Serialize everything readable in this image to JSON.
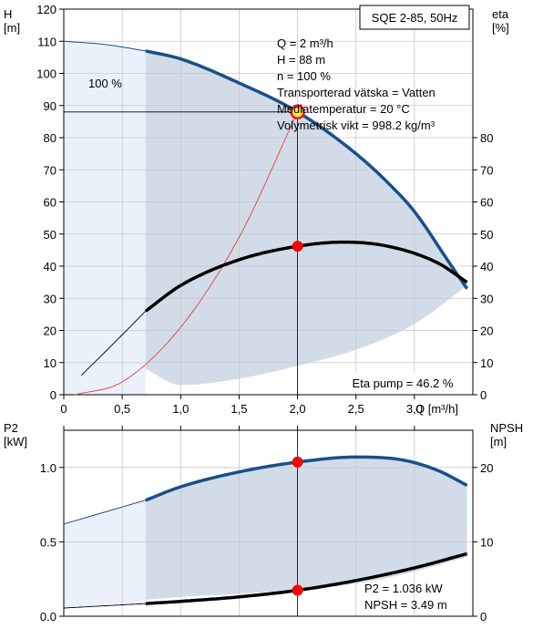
{
  "colors": {
    "curve_blue": "#1a4f8a",
    "curve_black": "#000000",
    "npsh_red": "#e04040",
    "region_dark": "#d2dce8",
    "region_light": "#eaf1fa",
    "grid": "#c8c8c8",
    "marker": "#ff0000",
    "duty_fill": "#ffee33"
  },
  "chart_data": [
    {
      "type": "line",
      "panel": "top",
      "title_box": "SQE 2-85, 50Hz",
      "xlabel": "Q [m³/h]",
      "ylabel_left": "H\n[m]",
      "ylabel_right": "eta\n[%]",
      "xlim": [
        0,
        3.5
      ],
      "ylim_left": [
        0,
        120
      ],
      "ylim_right": [
        0,
        120
      ],
      "x_ticks": [
        "0",
        "0,5",
        "1,0",
        "1,5",
        "2,0",
        "2,5",
        "3,0"
      ],
      "x_tick_values": [
        0,
        0.5,
        1.0,
        1.5,
        2.0,
        2.5,
        3.0
      ],
      "y_left_ticks": [
        0,
        10,
        20,
        30,
        40,
        50,
        60,
        70,
        80,
        90,
        100,
        110,
        120
      ],
      "y_right_ticks": [
        0,
        10,
        20,
        30,
        40,
        50,
        60,
        70,
        80
      ],
      "grid": true,
      "speed_label": "100 %",
      "info_lines": [
        "Q = 2 m³/h",
        "H = 88 m",
        "n = 100 %",
        "Transporterad vätska = Vatten",
        "Mediatemperatur = 20 °C",
        "Volymetrisk vikt = 998.2 kg/m³"
      ],
      "eta_label": "Eta pump = 46.2 %",
      "duty_point": {
        "q": 2.0,
        "h": 88,
        "eta": 46.2
      },
      "series": [
        {
          "role": "head_extended",
          "x": [
            0,
            0.35,
            0.7
          ],
          "values": [
            110,
            109,
            107
          ]
        },
        {
          "role": "head",
          "x": [
            0.7,
            1.0,
            1.5,
            2.0,
            2.5,
            2.8,
            3.0,
            3.3,
            3.45
          ],
          "values": [
            107,
            104.5,
            97,
            88,
            75,
            65,
            57,
            41,
            33
          ]
        },
        {
          "role": "eta_extended",
          "x": [
            0.15,
            0.4,
            0.7
          ],
          "values": [
            6,
            15,
            26
          ]
        },
        {
          "role": "eta",
          "x": [
            0.7,
            1.0,
            1.5,
            2.0,
            2.4,
            2.8,
            3.2,
            3.45
          ],
          "values": [
            26,
            34,
            42,
            46.2,
            47.5,
            46,
            41,
            35
          ]
        },
        {
          "role": "system_curve",
          "x": [
            0.1,
            0.5,
            1.0,
            1.5,
            2.0
          ],
          "values": [
            0,
            4,
            21,
            49,
            88
          ]
        }
      ],
      "region_lower_boundary": {
        "x": [
          0.7,
          1.0,
          1.5,
          2.0,
          2.5,
          3.0,
          3.45
        ],
        "values": [
          8,
          3,
          5,
          9,
          14,
          22,
          34
        ]
      },
      "region_start_q": 0.7
    },
    {
      "type": "line",
      "panel": "bottom",
      "ylabel_left": "P2\n[kW]",
      "ylabel_right": "NPSH\n[m]",
      "xlim": [
        0,
        3.5
      ],
      "ylim_left": [
        0,
        1.25
      ],
      "ylim_right": [
        0,
        25
      ],
      "y_left_ticks": [
        "0.0",
        "0.5",
        "1.0"
      ],
      "y_left_tick_values": [
        0,
        0.5,
        1.0
      ],
      "y_right_ticks": [
        0,
        10,
        20
      ],
      "grid": true,
      "info_lines": [
        "P2 = 1.036 kW",
        "NPSH = 3.49 m"
      ],
      "duty_point": {
        "q": 2.0,
        "p2": 1.036,
        "npsh": 3.49
      },
      "series": [
        {
          "role": "p2_extended",
          "x": [
            0,
            0.35,
            0.7
          ],
          "values": [
            0.62,
            0.7,
            0.78
          ]
        },
        {
          "role": "p2",
          "x": [
            0.7,
            1.0,
            1.5,
            2.0,
            2.5,
            2.9,
            3.2,
            3.45
          ],
          "values": [
            0.78,
            0.87,
            0.97,
            1.036,
            1.07,
            1.05,
            0.98,
            0.88
          ]
        },
        {
          "role": "npsh_extended",
          "x": [
            0,
            0.35,
            0.7
          ],
          "values": [
            1.1,
            1.4,
            1.7
          ]
        },
        {
          "role": "npsh",
          "x": [
            0.7,
            1.0,
            1.5,
            2.0,
            2.5,
            3.0,
            3.45
          ],
          "values": [
            1.7,
            2.0,
            2.6,
            3.49,
            4.8,
            6.5,
            8.4
          ]
        }
      ],
      "region_lower_boundary": {
        "x": [
          0.7,
          1.0,
          1.5,
          2.0,
          2.5,
          3.0,
          3.45
        ],
        "values": [
          0.11,
          0.13,
          0.15,
          0.18,
          0.22,
          0.3,
          0.4
        ]
      },
      "region_start_q": 0.7
    }
  ]
}
